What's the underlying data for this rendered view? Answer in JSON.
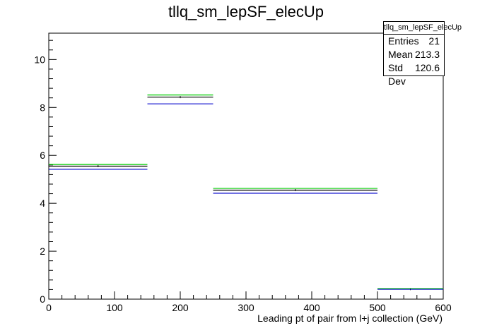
{
  "title": "tllq_sm_lepSF_elecUp",
  "stats": {
    "name": "tllq_sm_lepSF_elecUp",
    "rows": [
      {
        "label": "Entries",
        "value": "21"
      },
      {
        "label": "Mean",
        "value": "213.3"
      },
      {
        "label": "Std Dev",
        "value": "120.6"
      }
    ]
  },
  "chart_data": {
    "type": "bar",
    "title": "tllq_sm_lepSF_elecUp",
    "xlabel": "Leading pt of pair from l+j collection (GeV)",
    "ylabel": "",
    "xlim": [
      0,
      600
    ],
    "ylim": [
      0,
      11.1
    ],
    "bin_edges": [
      0,
      150,
      250,
      500,
      600
    ],
    "x_ticks": [
      0,
      100,
      200,
      300,
      400,
      500,
      600
    ],
    "y_ticks": [
      0,
      2,
      4,
      6,
      8,
      10
    ],
    "series": [
      {
        "color": "#000000",
        "values": [
          5.55,
          8.43,
          4.55,
          0.42
        ]
      },
      {
        "color": "#00cc00",
        "values": [
          5.62,
          8.52,
          4.62,
          0.44
        ]
      },
      {
        "color": "#0000cc",
        "values": [
          5.42,
          8.15,
          4.42,
          0.41
        ]
      }
    ]
  }
}
